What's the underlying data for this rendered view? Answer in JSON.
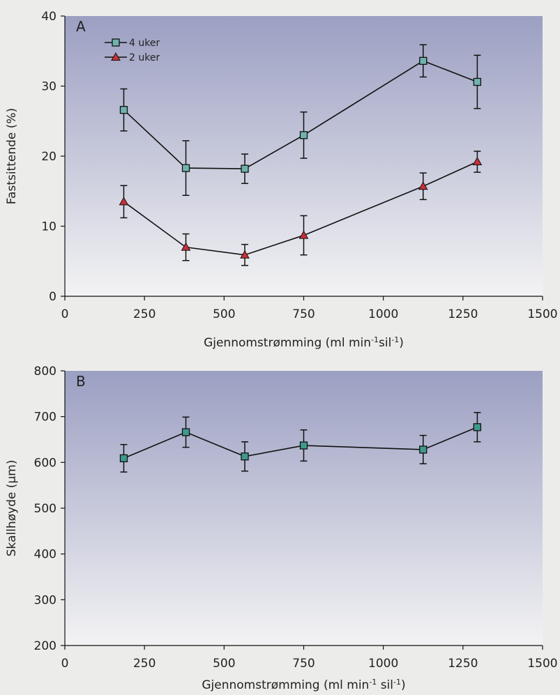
{
  "chart_data": [
    {
      "type": "line",
      "panel_label": "A",
      "xlabel": "Gjennomstrømming (ml min",
      "xlabel_sup1": "-1",
      "xlabel_mid": "sil",
      "xlabel_sup2": "-1",
      "xlabel_end": ")",
      "ylabel": "Fastsittende (%)",
      "xlim": [
        0,
        1500
      ],
      "ylim": [
        0,
        40
      ],
      "x_ticks": [
        "0",
        "250",
        "500",
        "750",
        "1000",
        "1250",
        "1500"
      ],
      "y_ticks": [
        "0",
        "10",
        "20",
        "30",
        "40"
      ],
      "legend_position": "top-left",
      "series": [
        {
          "name": "4 uker",
          "marker": "square",
          "color": "#6fb3ad",
          "x": [
            185,
            380,
            565,
            750,
            1125,
            1295
          ],
          "y": [
            26.6,
            18.3,
            18.2,
            23.0,
            33.6,
            30.6
          ],
          "err": [
            3.0,
            3.9,
            2.1,
            3.3,
            2.3,
            3.8
          ]
        },
        {
          "name": "2 uker",
          "marker": "triangle",
          "color": "#c8303a",
          "x": [
            185,
            380,
            565,
            750,
            1125,
            1295
          ],
          "y": [
            13.5,
            7.0,
            5.9,
            8.7,
            15.7,
            19.2
          ],
          "err": [
            2.3,
            1.9,
            1.5,
            2.8,
            1.9,
            1.5
          ]
        }
      ]
    },
    {
      "type": "line",
      "panel_label": "B",
      "xlabel": "Gjennomstrømming (ml min",
      "xlabel_sup1": "-1",
      "xlabel_mid": " sil",
      "xlabel_sup2": "-1",
      "xlabel_end": ")",
      "ylabel": "Skallhøyde (µm)",
      "xlim": [
        0,
        1500
      ],
      "ylim": [
        200,
        800
      ],
      "x_ticks": [
        "0",
        "250",
        "500",
        "750",
        "1000",
        "1250",
        "1500"
      ],
      "y_ticks": [
        "200",
        "300",
        "400",
        "500",
        "600",
        "700",
        "800"
      ],
      "series": [
        {
          "marker": "square",
          "color": "#3f9a8c",
          "x": [
            185,
            380,
            565,
            750,
            1125,
            1295
          ],
          "y": [
            609,
            666,
            613,
            637,
            628,
            677
          ],
          "err": [
            30,
            33,
            32,
            34,
            31,
            32
          ]
        }
      ]
    }
  ],
  "colors": {
    "plot_bg_top": "#9b9fc2",
    "plot_bg_bottom": "#f3f3f4",
    "page_bg": "#ececeb",
    "line": "#111111"
  }
}
